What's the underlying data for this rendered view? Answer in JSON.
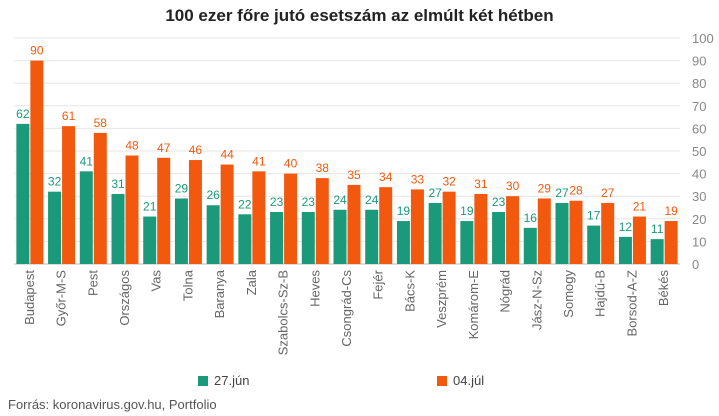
{
  "chart_data": {
    "type": "bar",
    "title": "100 ezer főre jutó esetszám az elmúlt két hétben",
    "categories": [
      "Budapest",
      "Győr-M-S",
      "Pest",
      "Országos",
      "Vas",
      "Tolna",
      "Baranya",
      "Zala",
      "Szabolcs-Sz-B",
      "Heves",
      "Csongrád-Cs",
      "Fejér",
      "Bács-K",
      "Veszprém",
      "Komárom-E",
      "Nógrád",
      "Jász-N-Sz",
      "Somogy",
      "Hajdú-B",
      "Borsod-A-Z",
      "Békés"
    ],
    "series": [
      {
        "name": "27.jún",
        "color": "#1a9a7a",
        "values": [
          62,
          32,
          41,
          31,
          21,
          29,
          26,
          22,
          23,
          23,
          24,
          24,
          19,
          27,
          19,
          23,
          16,
          27,
          17,
          12,
          11
        ]
      },
      {
        "name": "04.júl",
        "color": "#f2590f",
        "values": [
          90,
          61,
          58,
          48,
          47,
          46,
          44,
          41,
          40,
          38,
          35,
          34,
          33,
          32,
          31,
          30,
          29,
          28,
          27,
          21,
          19
        ]
      }
    ],
    "ylim": [
      0,
      100
    ],
    "yticks": [
      0,
      10,
      20,
      30,
      40,
      50,
      60,
      70,
      80,
      90,
      100
    ],
    "y_axis_position": "right",
    "grid": true,
    "legend_position": "bottom",
    "source": "Forrás: koronavirus.gov.hu, Portfolio"
  }
}
